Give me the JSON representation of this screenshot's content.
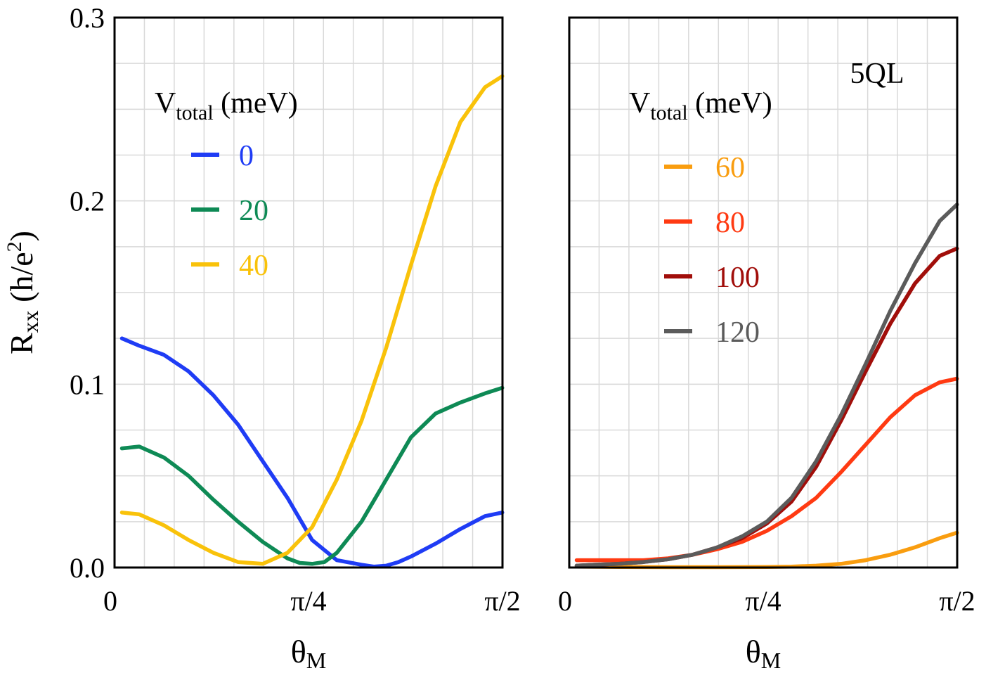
{
  "chart_data": [
    {
      "type": "line",
      "panel": "left",
      "annotation": "",
      "xlabel": "θ",
      "xlabel_sub": "M",
      "ylabel": "R",
      "ylabel_sub": "xx",
      "ylabel_unit_open": " (h/e",
      "ylabel_unit_sup": "2",
      "ylabel_unit_close": ")",
      "xlim": [
        0,
        1.5708
      ],
      "ylim": [
        0,
        0.3
      ],
      "x_ticks": [
        {
          "value": 0,
          "label": "0"
        },
        {
          "value": 0.7854,
          "label": "π/4"
        },
        {
          "value": 1.5708,
          "label": "π/2"
        }
      ],
      "y_ticks": [
        {
          "value": 0.0,
          "label": "0.0"
        },
        {
          "value": 0.1,
          "label": "0.1"
        },
        {
          "value": 0.2,
          "label": "0.2"
        },
        {
          "value": 0.3,
          "label": "0.3"
        }
      ],
      "grid": true,
      "legend": {
        "title_main": "V",
        "title_sub": "total",
        "title_unit": " (meV)",
        "placement": "top-left"
      },
      "series": [
        {
          "name": "0",
          "color": "#1f3cf5",
          "x": [
            0.03,
            0.1,
            0.2,
            0.3,
            0.4,
            0.5,
            0.6,
            0.7,
            0.8,
            0.9,
            1.0,
            1.05,
            1.1,
            1.15,
            1.2,
            1.3,
            1.4,
            1.5,
            1.57
          ],
          "y": [
            0.125,
            0.121,
            0.116,
            0.107,
            0.094,
            0.078,
            0.058,
            0.038,
            0.015,
            0.004,
            0.0015,
            0.0005,
            0.001,
            0.003,
            0.006,
            0.013,
            0.021,
            0.028,
            0.03
          ]
        },
        {
          "name": "20",
          "color": "#0e8a55",
          "x": [
            0.03,
            0.1,
            0.2,
            0.3,
            0.4,
            0.5,
            0.6,
            0.7,
            0.75,
            0.8,
            0.85,
            0.9,
            1.0,
            1.1,
            1.2,
            1.3,
            1.4,
            1.5,
            1.57
          ],
          "y": [
            0.065,
            0.066,
            0.06,
            0.05,
            0.037,
            0.025,
            0.014,
            0.005,
            0.0025,
            0.002,
            0.003,
            0.008,
            0.025,
            0.048,
            0.071,
            0.084,
            0.09,
            0.095,
            0.098
          ]
        },
        {
          "name": "40",
          "color": "#f9c20a",
          "x": [
            0.03,
            0.1,
            0.2,
            0.3,
            0.4,
            0.5,
            0.6,
            0.7,
            0.8,
            0.9,
            1.0,
            1.1,
            1.2,
            1.3,
            1.4,
            1.5,
            1.57
          ],
          "y": [
            0.03,
            0.029,
            0.023,
            0.015,
            0.008,
            0.003,
            0.002,
            0.008,
            0.022,
            0.048,
            0.08,
            0.12,
            0.165,
            0.208,
            0.243,
            0.262,
            0.268
          ]
        }
      ]
    },
    {
      "type": "line",
      "panel": "right",
      "annotation": "5QL",
      "xlabel": "θ",
      "xlabel_sub": "M",
      "ylabel": "",
      "xlim": [
        0,
        1.5708
      ],
      "ylim": [
        0,
        0.3
      ],
      "x_ticks": [
        {
          "value": 0,
          "label": "0"
        },
        {
          "value": 0.7854,
          "label": "π/4"
        },
        {
          "value": 1.5708,
          "label": "π/2"
        }
      ],
      "y_ticks": [],
      "grid": true,
      "legend": {
        "title_main": "V",
        "title_sub": "total",
        "title_unit": " (meV)",
        "placement": "top-left"
      },
      "series": [
        {
          "name": "60",
          "color": "#f99d0f",
          "x": [
            0.03,
            0.2,
            0.4,
            0.6,
            0.8,
            0.9,
            1.0,
            1.1,
            1.2,
            1.3,
            1.4,
            1.5,
            1.57
          ],
          "y": [
            0.0005,
            0.0003,
            0.0002,
            0.0002,
            0.0003,
            0.0005,
            0.001,
            0.002,
            0.004,
            0.007,
            0.011,
            0.016,
            0.019
          ]
        },
        {
          "name": "80",
          "color": "#ff3a12",
          "x": [
            0.03,
            0.1,
            0.2,
            0.3,
            0.4,
            0.5,
            0.6,
            0.7,
            0.8,
            0.9,
            1.0,
            1.1,
            1.2,
            1.3,
            1.4,
            1.5,
            1.57
          ],
          "y": [
            0.004,
            0.004,
            0.004,
            0.004,
            0.005,
            0.007,
            0.01,
            0.014,
            0.02,
            0.028,
            0.038,
            0.052,
            0.067,
            0.082,
            0.094,
            0.101,
            0.103
          ]
        },
        {
          "name": "100",
          "color": "#a10e0a",
          "x": [
            0.03,
            0.1,
            0.2,
            0.3,
            0.4,
            0.5,
            0.6,
            0.7,
            0.8,
            0.9,
            1.0,
            1.1,
            1.2,
            1.3,
            1.4,
            1.5,
            1.57
          ],
          "y": [
            0.001,
            0.0015,
            0.002,
            0.003,
            0.0045,
            0.007,
            0.011,
            0.016,
            0.024,
            0.036,
            0.055,
            0.08,
            0.107,
            0.133,
            0.155,
            0.17,
            0.174
          ]
        },
        {
          "name": "120",
          "color": "#5b5b5b",
          "x": [
            0.03,
            0.1,
            0.2,
            0.3,
            0.4,
            0.5,
            0.6,
            0.7,
            0.8,
            0.9,
            1.0,
            1.1,
            1.2,
            1.3,
            1.4,
            1.5,
            1.57
          ],
          "y": [
            0.001,
            0.0015,
            0.002,
            0.003,
            0.0045,
            0.007,
            0.011,
            0.017,
            0.025,
            0.038,
            0.058,
            0.083,
            0.111,
            0.14,
            0.166,
            0.189,
            0.198
          ]
        }
      ]
    }
  ]
}
